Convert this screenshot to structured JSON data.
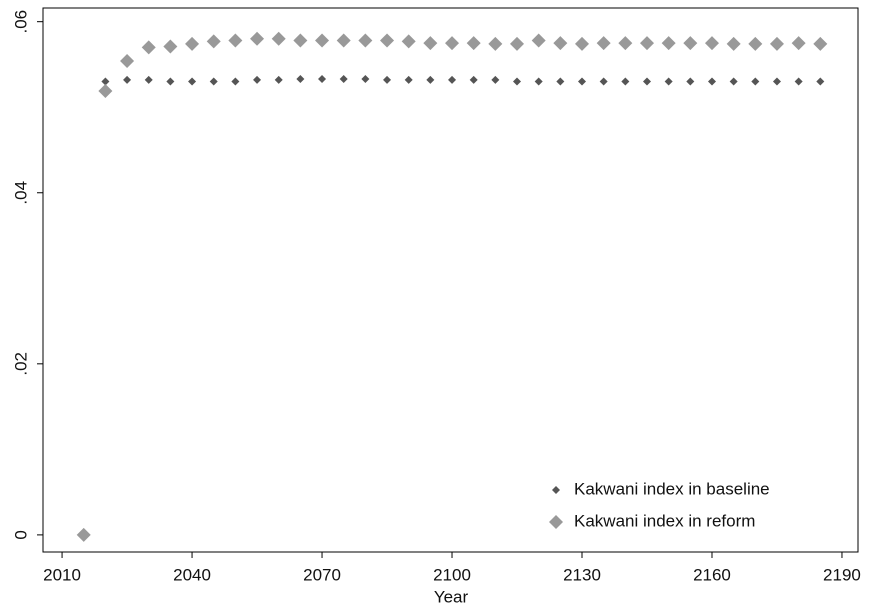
{
  "chart_data": {
    "type": "scatter",
    "x_label": "Year",
    "xlim": [
      2005.6,
      2193.7
    ],
    "xticks": [
      2010,
      2040,
      2070,
      2100,
      2130,
      2160,
      2190
    ],
    "ylim": [
      -0.002,
      0.0616
    ],
    "yticks": [
      0,
      {
        "value": 0.02,
        "label": ".02"
      },
      {
        "value": 0.04,
        "label": ".04"
      },
      {
        "value": 0.06,
        "label": ".06"
      }
    ],
    "legend": "bottom-right",
    "series": [
      {
        "name": "Kakwani index in baseline",
        "color": "#555555",
        "marker_size": 4,
        "x": [
          2020,
          2025,
          2030,
          2035,
          2040,
          2045,
          2050,
          2055,
          2060,
          2065,
          2070,
          2075,
          2080,
          2085,
          2090,
          2095,
          2100,
          2105,
          2110,
          2115,
          2120,
          2125,
          2130,
          2135,
          2140,
          2145,
          2150,
          2155,
          2160,
          2165,
          2170,
          2175,
          2180,
          2185
        ],
        "values": [
          0.053,
          0.0532,
          0.0532,
          0.053,
          0.053,
          0.053,
          0.053,
          0.0532,
          0.0532,
          0.0533,
          0.0533,
          0.0533,
          0.0533,
          0.0532,
          0.0532,
          0.0532,
          0.0532,
          0.0532,
          0.0532,
          0.053,
          0.053,
          0.053,
          0.053,
          0.053,
          0.053,
          0.053,
          0.053,
          0.053,
          0.053,
          0.053,
          0.053,
          0.053,
          0.053,
          0.053
        ]
      },
      {
        "name": "Kakwani index in reform",
        "color": "#999999",
        "marker_size": 7,
        "x": [
          2015,
          2020,
          2025,
          2030,
          2035,
          2040,
          2045,
          2050,
          2055,
          2060,
          2065,
          2070,
          2075,
          2080,
          2085,
          2090,
          2095,
          2100,
          2105,
          2110,
          2115,
          2120,
          2125,
          2130,
          2135,
          2140,
          2145,
          2150,
          2155,
          2160,
          2165,
          2170,
          2175,
          2180,
          2185
        ],
        "values": [
          0,
          0.0519,
          0.0554,
          0.057,
          0.0571,
          0.0574,
          0.0577,
          0.0578,
          0.058,
          0.058,
          0.0578,
          0.0578,
          0.0578,
          0.0578,
          0.0578,
          0.0577,
          0.0575,
          0.0575,
          0.0575,
          0.0574,
          0.0574,
          0.0578,
          0.0575,
          0.0574,
          0.0575,
          0.0575,
          0.0575,
          0.0575,
          0.0575,
          0.0575,
          0.0574,
          0.0574,
          0.0574,
          0.0575,
          0.0574
        ]
      }
    ]
  }
}
